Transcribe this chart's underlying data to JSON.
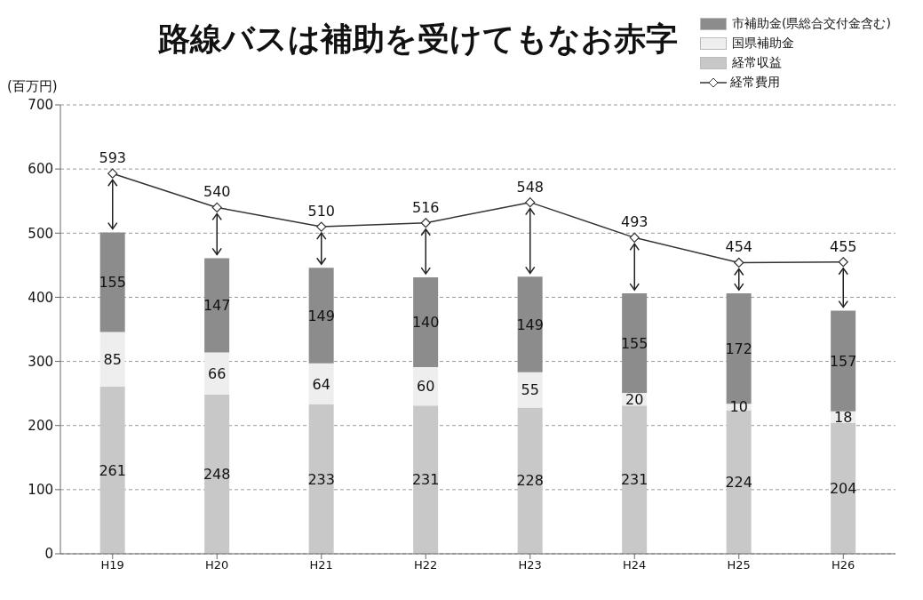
{
  "chart_data": {
    "type": "bar",
    "title": "路線バスは補助を受けてもなお赤字",
    "ylabel": "(百万円)",
    "categories": [
      "H19",
      "H20",
      "H21",
      "H22",
      "H23",
      "H24",
      "H25",
      "H26"
    ],
    "stacked": true,
    "series": [
      {
        "name": "経常収益",
        "color": "#c8c8c8",
        "values": [
          261,
          248,
          233,
          231,
          228,
          231,
          224,
          204
        ]
      },
      {
        "name": "国県補助金",
        "color": "#eeeeee",
        "values": [
          85,
          66,
          64,
          60,
          55,
          20,
          10,
          18
        ]
      },
      {
        "name": "市補助金(県総合交付金含む)",
        "color": "#8c8c8c",
        "values": [
          155,
          147,
          149,
          140,
          149,
          155,
          172,
          157
        ]
      },
      {
        "name": "経常費用",
        "type": "line",
        "color": "#333333",
        "values": [
          593,
          540,
          510,
          516,
          548,
          493,
          454,
          455
        ]
      }
    ],
    "ylim": [
      0,
      700
    ],
    "yticks": [
      0,
      100,
      200,
      300,
      400,
      500,
      600,
      700
    ],
    "grid": "y",
    "legend": "top right",
    "marker": "diamond",
    "data_labels": true
  }
}
